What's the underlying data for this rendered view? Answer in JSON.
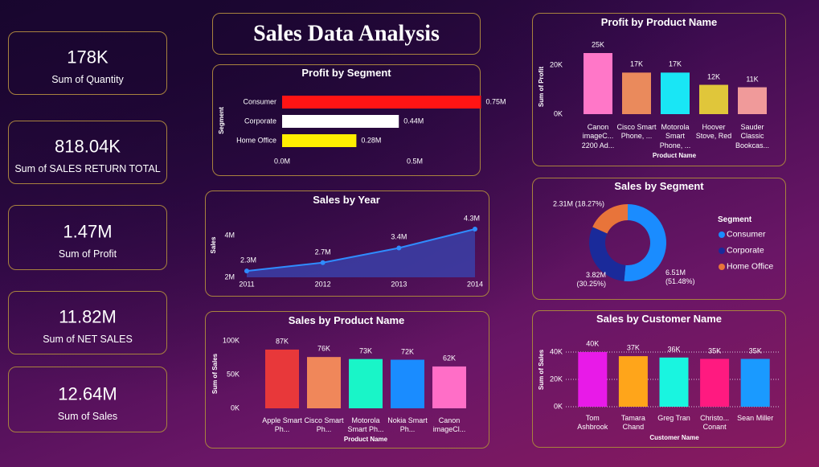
{
  "title": "Sales Data Analysis",
  "kpis": [
    {
      "value": "178K",
      "label": "Sum of Quantity"
    },
    {
      "value": "818.04K",
      "label": "Sum of SALES RETURN TOTAL"
    },
    {
      "value": "1.47M",
      "label": "Sum of Profit"
    },
    {
      "value": "11.82M",
      "label": "Sum of NET SALES"
    },
    {
      "value": "12.64M",
      "label": "Sum of Sales"
    }
  ],
  "chart_data": [
    {
      "type": "hbar",
      "title": "Profit by Segment",
      "y_label": "Segment",
      "categories": [
        "Consumer",
        "Corporate",
        "Home Office"
      ],
      "values": [
        0.75,
        0.44,
        0.28
      ],
      "value_labels": [
        "0.75M",
        "0.44M",
        "0.28M"
      ],
      "colors": [
        "#ff1414",
        "#ffffff",
        "#ffee00"
      ],
      "xlim": [
        0,
        0.8
      ],
      "xticks": [
        {
          "value": 0,
          "label": "0.0M"
        },
        {
          "value": 0.5,
          "label": "0.5M"
        }
      ],
      "grid": false
    },
    {
      "type": "area",
      "title": "Sales by Year",
      "y_label": "Sales",
      "x": [
        2011,
        2012,
        2013,
        2014
      ],
      "values": [
        2.3,
        2.7,
        3.4,
        4.3
      ],
      "value_labels": [
        "2.3M",
        "2.7M",
        "3.4M",
        "4.3M"
      ],
      "color": "#2f8cff",
      "xlim": [
        2011,
        2014
      ],
      "xticks": [
        2011,
        2012,
        2013,
        2014
      ],
      "ylim": [
        2,
        4.3
      ],
      "yticks": [
        {
          "value": 2,
          "label": "2M"
        },
        {
          "value": 4,
          "label": "4M"
        }
      ],
      "grid": false
    },
    {
      "type": "bar",
      "title": "Sales by Product Name",
      "x_label": "Product Name",
      "y_label": "Sum of Sales",
      "categories": [
        "Apple Smart Ph...",
        "Cisco Smart Ph...",
        "Motorola Smart Ph...",
        "Nokia Smart Ph...",
        "Canon imageCl..."
      ],
      "values": [
        87000,
        76000,
        73000,
        72000,
        62000
      ],
      "value_labels": [
        "87K",
        "76K",
        "73K",
        "72K",
        "62K"
      ],
      "colors": [
        "#e8383a",
        "#f0875a",
        "#19f5c8",
        "#1a8cff",
        "#ff6ec7"
      ],
      "ylim": [
        0,
        100000
      ],
      "yticks": [
        {
          "value": 0,
          "label": "0K"
        },
        {
          "value": 50000,
          "label": "50K"
        },
        {
          "value": 100000,
          "label": "100K"
        }
      ],
      "grid": false
    },
    {
      "type": "bar",
      "title": "Profit by Product Name",
      "x_label": "Product Name",
      "y_label": "Sum of Profit",
      "categories": [
        "Canon imageC... 2200 Ad...",
        "Cisco Smart Phone, ...",
        "Motorola Smart Phone, ...",
        "Hoover Stove, Red",
        "Sauder Classic Bookcas..."
      ],
      "values": [
        25000,
        17000,
        17000,
        12000,
        11000
      ],
      "value_labels": [
        "25K",
        "17K",
        "17K",
        "12K",
        "11K"
      ],
      "colors": [
        "#ff77c8",
        "#ea8a5c",
        "#19e6f5",
        "#e0c63a",
        "#f09a9a"
      ],
      "ylim": [
        0,
        25000
      ],
      "yticks": [
        {
          "value": 0,
          "label": "0K"
        },
        {
          "value": 20000,
          "label": "20K"
        }
      ],
      "grid": false
    },
    {
      "type": "donut",
      "title": "Sales by Segment",
      "legend_title": "Segment",
      "categories": [
        "Consumer",
        "Corporate",
        "Home Office"
      ],
      "values": [
        6.51,
        3.82,
        2.31
      ],
      "value_labels": [
        "6.51M (51.48%)",
        "3.82M (30.25%)",
        "2.31M (18.27%)"
      ],
      "colors": [
        "#1a8cff",
        "#1a2a9a",
        "#e8743a"
      ],
      "legend": "right"
    },
    {
      "type": "bar",
      "title": "Sales by Customer Name",
      "x_label": "Customer Name",
      "y_label": "Sum of Sales",
      "categories": [
        "Tom Ashbrook",
        "Tamara Chand",
        "Greg Tran",
        "Christo... Conant",
        "Sean Miller"
      ],
      "values": [
        40000,
        37000,
        36000,
        35000,
        35000
      ],
      "value_labels": [
        "40K",
        "37K",
        "36K",
        "35K",
        "35K"
      ],
      "colors": [
        "#e81ae8",
        "#ffa51a",
        "#19f5e0",
        "#ff1a80",
        "#1a9aff"
      ],
      "ylim": [
        0,
        40000
      ],
      "yticks": [
        {
          "value": 0,
          "label": "0K"
        },
        {
          "value": 20000,
          "label": "20K"
        },
        {
          "value": 40000,
          "label": "40K"
        }
      ],
      "grid": true
    }
  ]
}
